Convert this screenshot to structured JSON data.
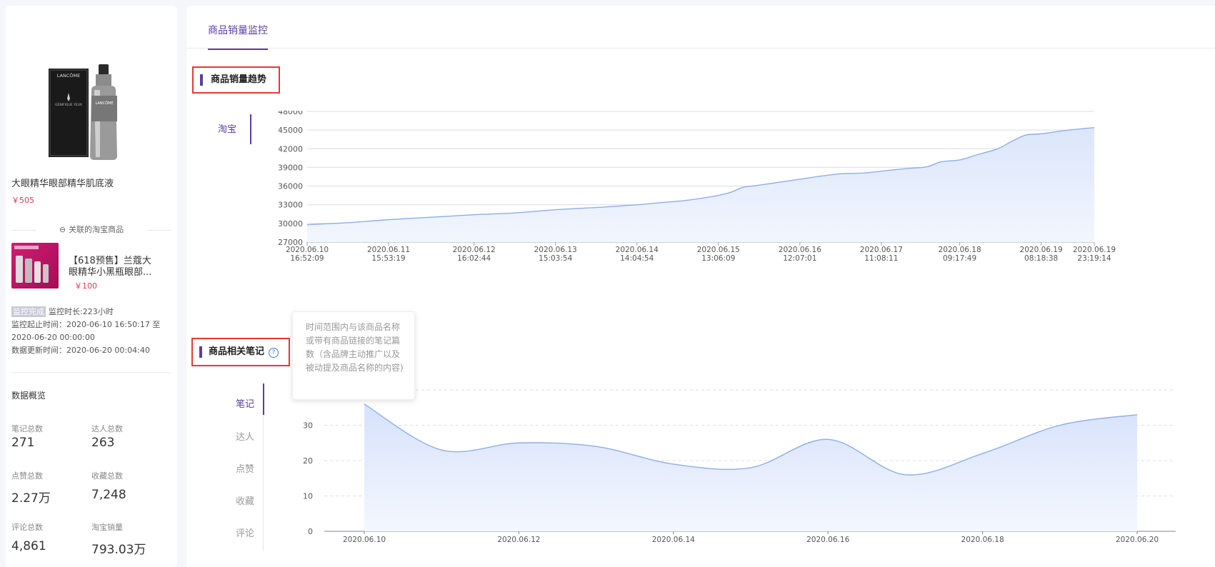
{
  "product": {
    "name": "大眼精华眼部精华肌底液",
    "price": "￥505",
    "image_text": [
      "LANCÔME",
      "GÉNIFIQUE YEUX",
      "LANCÔME"
    ]
  },
  "linked": {
    "title": "关联的淘宝商品",
    "item_name": "【618预售】兰蔻大眼精华小黑瓶眼部...",
    "item_price": "￥100"
  },
  "status": {
    "badge": "监控完成",
    "duration": "监控时长:223小时",
    "range_label": "监控起止时间：2020-06-10 16:50:17 至 2020-06-20 00:00:00",
    "update_time": "数据更新时间：2020-06-20 00:04:40"
  },
  "overview": {
    "title": "数据概览",
    "stats": [
      {
        "label": "笔记总数",
        "value": "271"
      },
      {
        "label": "达人总数",
        "value": "263"
      },
      {
        "label": "点赞总数",
        "value": "2.27万"
      },
      {
        "label": "收藏总数",
        "value": "7,248"
      },
      {
        "label": "评论总数",
        "value": "4,861"
      },
      {
        "label": "淘宝销量",
        "value": "793.03万"
      }
    ]
  },
  "main": {
    "tab": "商品销量监控",
    "sales_section_title": "商品销量趋势",
    "platform_tab": "淘宝",
    "notes_section_title": "商品相关笔记",
    "note_tabs": [
      "笔记",
      "达人",
      "点赞",
      "收藏",
      "评论"
    ],
    "tooltip": "时间范围内与该商品名称或带有商品链接的笔记篇数（含品牌主动推广以及被动提及商品名称的内容)"
  },
  "colors": {
    "accent": "#5a3e9e",
    "price": "#e9394c",
    "highlight": "#e53935",
    "line": "#8eaeea"
  },
  "chart_data": [
    {
      "type": "area",
      "title": "商品销量趋势",
      "ylim": [
        27000,
        48000
      ],
      "yticks": [
        27000,
        30000,
        33000,
        36000,
        39000,
        42000,
        45000,
        48000
      ],
      "xlim": [
        "2020-06-10 16:52:09",
        "2020-06-19 23:19:14"
      ],
      "xticks": [
        [
          "2020.06.10",
          "16:52:09"
        ],
        [
          "2020.06.11",
          "15:53:19"
        ],
        [
          "2020.06.12",
          "16:02:44"
        ],
        [
          "2020.06.13",
          "15:03:54"
        ],
        [
          "2020.06.14",
          "14:04:54"
        ],
        [
          "2020.06.15",
          "13:06:09"
        ],
        [
          "2020.06.16",
          "12:07:01"
        ],
        [
          "2020.06.17",
          "11:08:11"
        ],
        [
          "2020.06.18",
          "09:17:49"
        ],
        [
          "2020.06.19",
          "08:18:38"
        ],
        [
          "2020.06.19",
          "23:19:14"
        ]
      ],
      "x": [
        "2020-06-10 16:52",
        "2020-06-11 04:00",
        "2020-06-11 15:53",
        "2020-06-12 04:00",
        "2020-06-12 16:02",
        "2020-06-13 04:00",
        "2020-06-13 15:03",
        "2020-06-14 04:00",
        "2020-06-14 14:04",
        "2020-06-14 22:00",
        "2020-06-15 04:00",
        "2020-06-15 13:06",
        "2020-06-15 17:00",
        "2020-06-15 20:00",
        "2020-06-16 00:00",
        "2020-06-16 06:00",
        "2020-06-16 12:07",
        "2020-06-16 18:00",
        "2020-06-17 00:00",
        "2020-06-17 06:00",
        "2020-06-17 11:08",
        "2020-06-17 18:00",
        "2020-06-18 00:00",
        "2020-06-18 04:00",
        "2020-06-18 09:17",
        "2020-06-18 14:00",
        "2020-06-18 20:00",
        "2020-06-19 00:00",
        "2020-06-19 04:00",
        "2020-06-19 08:18",
        "2020-06-19 16:00",
        "2020-06-19 23:19"
      ],
      "values": [
        29800,
        30100,
        30600,
        31000,
        31400,
        31700,
        32200,
        32600,
        33000,
        33400,
        33700,
        34500,
        35100,
        35800,
        36100,
        36600,
        37100,
        37600,
        38000,
        38100,
        38400,
        38800,
        39100,
        39900,
        40200,
        41000,
        42000,
        43200,
        44200,
        44400,
        45000,
        45400
      ]
    },
    {
      "type": "area",
      "title": "商品相关笔记",
      "ylim": [
        0,
        40
      ],
      "yticks": [
        0,
        10,
        20,
        30
      ],
      "categories": [
        "2020.06.10",
        "2020.06.11",
        "2020.06.12",
        "2020.06.13",
        "2020.06.14",
        "2020.06.15",
        "2020.06.16",
        "2020.06.17",
        "2020.06.18",
        "2020.06.19",
        "2020.06.20"
      ],
      "xtick_labels": [
        "2020.06.10",
        "2020.06.12",
        "2020.06.14",
        "2020.06.16",
        "2020.06.18",
        "2020.06.20"
      ],
      "values": [
        36,
        23,
        25,
        24,
        19,
        18,
        26,
        16,
        22,
        30,
        33
      ]
    }
  ]
}
